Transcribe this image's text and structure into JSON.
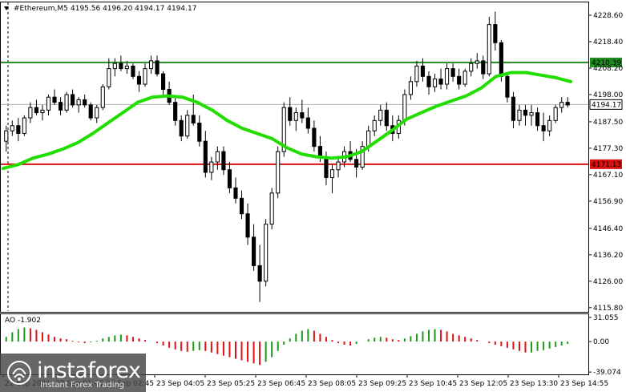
{
  "header": {
    "symbol": "#Ethereum,M5",
    "ohlc": "4195.56 4196.20 4194.17 4194.17"
  },
  "chart_data": {
    "type": "candlestick",
    "price_axis": {
      "ticks": [
        "4228.60",
        "4218.40",
        "4208.20",
        "4198.00",
        "4187.50",
        "4177.30",
        "4167.10",
        "4156.90",
        "4146.40",
        "4136.20",
        "4126.00",
        "4115.80"
      ],
      "range": [
        4114.5,
        4232
      ]
    },
    "time_axis": {
      "ticks": [
        "22 Sep 2021",
        "23 Sep 01:05",
        "23 Sep 02:45",
        "23 Sep 04:05",
        "23 Sep 05:25",
        "23 Sep 06:45",
        "23 Sep 08:05",
        "23 Sep 09:25",
        "23 Sep 10:45",
        "23 Sep 12:05",
        "23 Sep 13:30",
        "23 Sep 14:55"
      ]
    },
    "horizontal_levels": [
      {
        "label": "4210.39",
        "value": 4210.39,
        "color": "#1e8c1e"
      },
      {
        "label": "4171.13",
        "value": 4171.13,
        "color": "#dd1010"
      }
    ],
    "current_price": {
      "label": "4194.17",
      "value": 4194.17
    },
    "moving_average": {
      "color": "#22dd00",
      "points": [
        [
          0,
          4169.5
        ],
        [
          10,
          4171
        ],
        [
          20,
          4173.5
        ],
        [
          30,
          4175
        ],
        [
          40,
          4177
        ],
        [
          50,
          4179.5
        ],
        [
          60,
          4183
        ],
        [
          70,
          4187
        ],
        [
          80,
          4191
        ],
        [
          90,
          4195
        ],
        [
          100,
          4197
        ],
        [
          110,
          4197.5
        ],
        [
          120,
          4197
        ],
        [
          130,
          4195
        ],
        [
          140,
          4192
        ],
        [
          150,
          4188
        ],
        [
          160,
          4185
        ],
        [
          170,
          4183
        ],
        [
          180,
          4181
        ],
        [
          190,
          4177.5
        ],
        [
          200,
          4175
        ],
        [
          210,
          4174
        ],
        [
          220,
          4173.5
        ],
        [
          230,
          4174
        ],
        [
          240,
          4176
        ],
        [
          250,
          4180
        ],
        [
          260,
          4184
        ],
        [
          270,
          4188.5
        ],
        [
          280,
          4191
        ],
        [
          290,
          4193.5
        ],
        [
          300,
          4195.5
        ],
        [
          310,
          4197.5
        ],
        [
          320,
          4200.5
        ],
        [
          330,
          4205
        ],
        [
          340,
          4206.5
        ],
        [
          350,
          4206.5
        ],
        [
          360,
          4205.5
        ],
        [
          370,
          4204.5
        ],
        [
          380,
          4203
        ]
      ]
    },
    "candles": [
      [
        4180,
        4186,
        4176,
        4184
      ],
      [
        4184,
        4188,
        4182,
        4186
      ],
      [
        4186,
        4189,
        4180,
        4183
      ],
      [
        4183,
        4190,
        4182,
        4189
      ],
      [
        4189,
        4195,
        4187,
        4193
      ],
      [
        4193,
        4196,
        4190,
        4191
      ],
      [
        4191,
        4194,
        4188,
        4192
      ],
      [
        4192,
        4198,
        4190,
        4197
      ],
      [
        4197,
        4200,
        4194,
        4195
      ],
      [
        4195,
        4197,
        4190,
        4192
      ],
      [
        4192,
        4199,
        4191,
        4198
      ],
      [
        4198,
        4200,
        4193,
        4194
      ],
      [
        4194,
        4197,
        4191,
        4196
      ],
      [
        4196,
        4198,
        4193,
        4194
      ],
      [
        4194,
        4195,
        4188,
        4189
      ],
      [
        4189,
        4194,
        4187,
        4193
      ],
      [
        4193,
        4202,
        4192,
        4201
      ],
      [
        4201,
        4212,
        4200,
        4208
      ],
      [
        4208,
        4212,
        4205,
        4210
      ],
      [
        4210,
        4213,
        4207,
        4208
      ],
      [
        4208,
        4211,
        4206,
        4209
      ],
      [
        4209,
        4210,
        4204,
        4205
      ],
      [
        4205,
        4207,
        4199,
        4202
      ],
      [
        4202,
        4210,
        4201,
        4208
      ],
      [
        4208,
        4213,
        4206,
        4211
      ],
      [
        4211,
        4213,
        4205,
        4206
      ],
      [
        4206,
        4207,
        4198,
        4200
      ],
      [
        4200,
        4203,
        4194,
        4195
      ],
      [
        4195,
        4197,
        4186,
        4188
      ],
      [
        4188,
        4190,
        4180,
        4182
      ],
      [
        4182,
        4192,
        4181,
        4190
      ],
      [
        4190,
        4198,
        4186,
        4187
      ],
      [
        4187,
        4190,
        4178,
        4180
      ],
      [
        4180,
        4184,
        4166,
        4168
      ],
      [
        4168,
        4174,
        4165,
        4172
      ],
      [
        4172,
        4178,
        4169,
        4176
      ],
      [
        4176,
        4178,
        4167,
        4169
      ],
      [
        4169,
        4172,
        4160,
        4162
      ],
      [
        4162,
        4166,
        4156,
        4158
      ],
      [
        4158,
        4161,
        4150,
        4152
      ],
      [
        4152,
        4156,
        4140,
        4143
      ],
      [
        4143,
        4148,
        4130,
        4132
      ],
      [
        4132,
        4140,
        4118,
        4126
      ],
      [
        4126,
        4150,
        4124,
        4148
      ],
      [
        4148,
        4162,
        4146,
        4160
      ],
      [
        4160,
        4178,
        4158,
        4176
      ],
      [
        4176,
        4195,
        4174,
        4193
      ],
      [
        4193,
        4197,
        4186,
        4188
      ],
      [
        4188,
        4193,
        4184,
        4191
      ],
      [
        4191,
        4196,
        4187,
        4189
      ],
      [
        4189,
        4193,
        4183,
        4185
      ],
      [
        4185,
        4188,
        4176,
        4178
      ],
      [
        4178,
        4182,
        4172,
        4174
      ],
      [
        4174,
        4176,
        4163,
        4166
      ],
      [
        4166,
        4171,
        4160,
        4169
      ],
      [
        4169,
        4174,
        4166,
        4172
      ],
      [
        4172,
        4178,
        4170,
        4176
      ],
      [
        4176,
        4180,
        4172,
        4173
      ],
      [
        4173,
        4177,
        4166,
        4170
      ],
      [
        4170,
        4180,
        4169,
        4178
      ],
      [
        4178,
        4186,
        4176,
        4184
      ],
      [
        4184,
        4190,
        4182,
        4188
      ],
      [
        4188,
        4194,
        4186,
        4192
      ],
      [
        4192,
        4195,
        4184,
        4186
      ],
      [
        4186,
        4190,
        4180,
        4183
      ],
      [
        4183,
        4190,
        4181,
        4188
      ],
      [
        4188,
        4200,
        4186,
        4198
      ],
      [
        4198,
        4205,
        4196,
        4203
      ],
      [
        4203,
        4211,
        4201,
        4209
      ],
      [
        4209,
        4212,
        4203,
        4205
      ],
      [
        4205,
        4207,
        4198,
        4201
      ],
      [
        4201,
        4206,
        4199,
        4204
      ],
      [
        4204,
        4208,
        4200,
        4202
      ],
      [
        4202,
        4210,
        4200,
        4208
      ],
      [
        4208,
        4210,
        4203,
        4205
      ],
      [
        4205,
        4208,
        4200,
        4202
      ],
      [
        4202,
        4208,
        4201,
        4207
      ],
      [
        4207,
        4212,
        4205,
        4210
      ],
      [
        4210,
        4214,
        4208,
        4211
      ],
      [
        4211,
        4213,
        4204,
        4206
      ],
      [
        4206,
        4228,
        4205,
        4225
      ],
      [
        4225,
        4230,
        4215,
        4218
      ],
      [
        4218,
        4219,
        4203,
        4205
      ],
      [
        4205,
        4206,
        4195,
        4197
      ],
      [
        4197,
        4199,
        4185,
        4188
      ],
      [
        4188,
        4194,
        4186,
        4192
      ],
      [
        4192,
        4194,
        4186,
        4190
      ],
      [
        4190,
        4194,
        4186,
        4191
      ],
      [
        4191,
        4193,
        4184,
        4186
      ],
      [
        4186,
        4191,
        4180,
        4184
      ],
      [
        4184,
        4190,
        4182,
        4188
      ],
      [
        4188,
        4194,
        4187,
        4193
      ],
      [
        4193,
        4197,
        4191,
        4195
      ],
      [
        4195,
        4197,
        4193,
        4194
      ]
    ],
    "ao_panel": {
      "label": "AO -1.902",
      "ticks": [
        "31.055",
        "0.00",
        "-39.074"
      ],
      "range": [
        -41,
        33
      ],
      "values": [
        6,
        12,
        16,
        18,
        17,
        15,
        12,
        9,
        6,
        4,
        3,
        1,
        -1,
        -2,
        -1,
        1,
        4,
        6,
        8,
        9,
        8,
        6,
        4,
        2,
        0,
        -2,
        -5,
        -8,
        -10,
        -12,
        -13,
        -12,
        -11,
        -12,
        -14,
        -16,
        -18,
        -20,
        -22,
        -24,
        -26,
        -28,
        -30,
        -26,
        -20,
        -12,
        -4,
        4,
        10,
        14,
        16,
        14,
        10,
        6,
        2,
        -2,
        -4,
        -5,
        -3,
        0,
        3,
        5,
        6,
        5,
        3,
        2,
        4,
        7,
        10,
        13,
        15,
        16,
        15,
        13,
        10,
        8,
        6,
        4,
        2,
        0,
        -2,
        -4,
        -6,
        -8,
        -10,
        -12,
        -14,
        -14,
        -12,
        -11,
        -9,
        -7,
        -5,
        -3
      ]
    }
  }
}
